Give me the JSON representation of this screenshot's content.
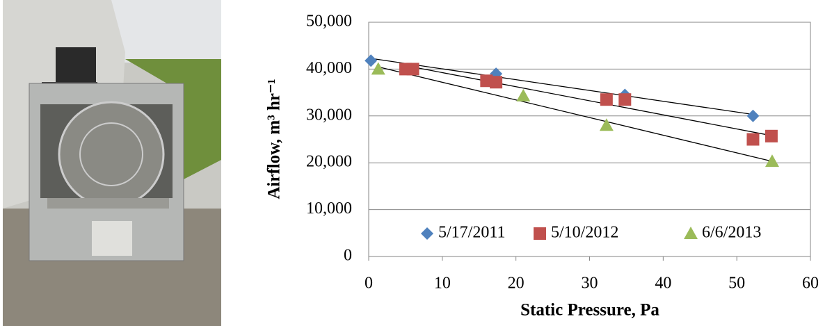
{
  "chart_data": {
    "type": "scatter",
    "xlabel": "Static Pressure, Pa",
    "ylabel": "Airflow, m³ hr⁻¹",
    "xlim": [
      0,
      60
    ],
    "xticks": [
      0,
      10,
      20,
      30,
      40,
      50,
      60
    ],
    "ylim": [
      0,
      50000
    ],
    "yticks": [
      0,
      {
        "value": 10000,
        "label": "10,000"
      },
      {
        "value": 20000,
        "label": "20,000"
      },
      {
        "value": 30000,
        "label": "30,000"
      },
      {
        "value": 40000,
        "label": "40,000"
      },
      {
        "value": 50000,
        "label": "50,000"
      }
    ],
    "grid": true,
    "trendline": true,
    "legend": "bottom",
    "series": [
      {
        "name": "5/17/2011",
        "color": "#4f81bd",
        "marker": "diamond",
        "x": [
          0.3,
          17.3,
          34.8,
          52.2
        ],
        "values": [
          41800,
          39000,
          34500,
          30000
        ]
      },
      {
        "name": "5/10/2012",
        "color": "#c0504d",
        "marker": "square",
        "x": [
          5,
          6,
          16,
          17.3,
          32.3,
          34.8,
          52.2,
          54.7
        ],
        "values": [
          40000,
          40000,
          37500,
          37200,
          33500,
          33500,
          25000,
          25700
        ]
      },
      {
        "name": "6/6/2013",
        "color": "#9bbb59",
        "marker": "triangle",
        "x": [
          1.3,
          21,
          32.3,
          54.8
        ],
        "values": [
          40000,
          34300,
          28000,
          20300
        ]
      }
    ]
  }
}
